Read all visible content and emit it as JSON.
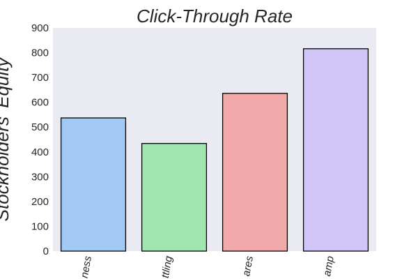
{
  "chart_data": {
    "type": "bar",
    "title": "Click-Through Rate",
    "xlabel": "",
    "ylabel": "Stockholders' Equity",
    "categories": [
      "...ness",
      "...ttling",
      "...ares",
      "...amp"
    ],
    "values": [
      537,
      434,
      636,
      816
    ],
    "ylim": [
      0,
      900
    ],
    "yticks": [
      0,
      100,
      200,
      300,
      400,
      500,
      600,
      700,
      800,
      900
    ],
    "grid": false,
    "legend": "none",
    "bar_colors": [
      "#a1c9f4",
      "#a1e5b0",
      "#f1aaa9",
      "#d1c4f6"
    ],
    "bar_edge_color": "#000000",
    "plot_background": "#eaeaf2"
  }
}
